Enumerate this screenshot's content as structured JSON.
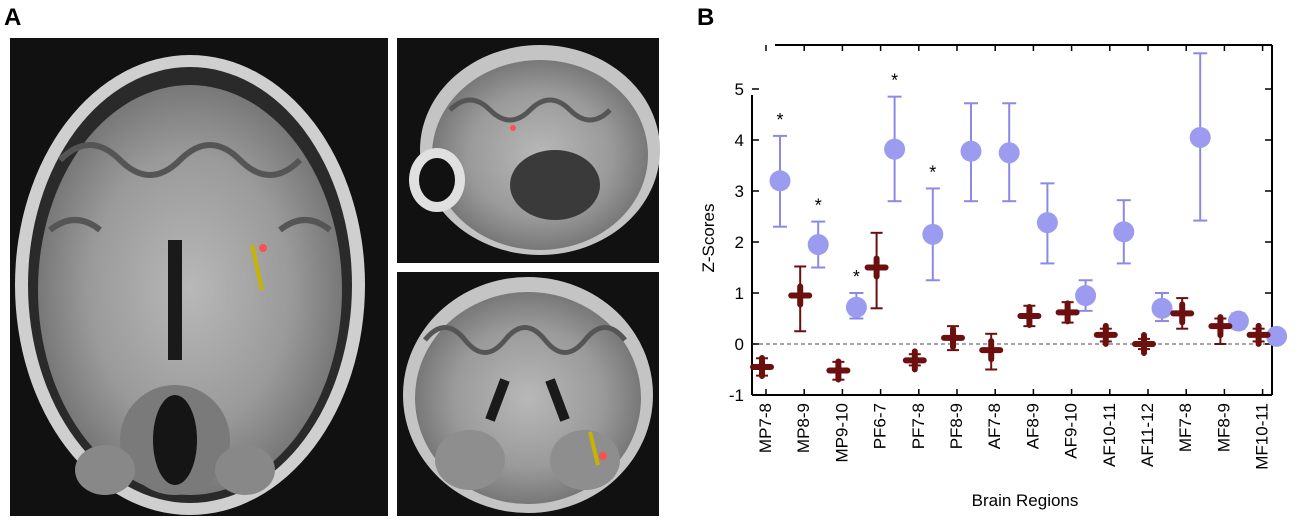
{
  "panels": {
    "a_label": "A",
    "b_label": "B"
  },
  "colors": {
    "series_a": "#9b9bf0",
    "series_a_err": "#8a8ae6",
    "series_b": "#6b0f0f"
  },
  "chart_data": {
    "type": "scatter",
    "xlabel": "Brain Regions",
    "ylabel": "Z-Scores",
    "ylim": [
      -1,
      5
    ],
    "yticks": [
      "-1",
      "0",
      "1",
      "2",
      "3",
      "4",
      "5"
    ],
    "grid": false,
    "reference_line": 0,
    "categories": [
      "MP7-8",
      "MP8-9",
      "MP9-10",
      "PF6-7",
      "PF7-8",
      "PF8-9",
      "AF7-8",
      "AF8-9",
      "AF9-10",
      "AF10-11",
      "AF11-12",
      "MF7-8",
      "MF8-9",
      "MF10-11"
    ],
    "series": [
      {
        "marker": "circle",
        "x_index": [
          0,
          1,
          2,
          3,
          4,
          5,
          6,
          7,
          8,
          9,
          10,
          11,
          12,
          13
        ],
        "values": [
          3.2,
          1.95,
          0.72,
          3.82,
          2.15,
          3.78,
          3.75,
          2.38,
          0.95,
          2.2,
          0.7,
          4.05,
          0.45,
          0.15
        ],
        "err_low": [
          2.3,
          1.5,
          0.5,
          2.8,
          1.25,
          2.8,
          2.8,
          1.58,
          0.65,
          1.58,
          0.45,
          2.42,
          0.3,
          0.05
        ],
        "err_high": [
          4.08,
          2.4,
          1.0,
          4.85,
          3.05,
          4.72,
          4.72,
          3.15,
          1.25,
          2.82,
          1.0,
          5.7,
          0.6,
          0.25
        ],
        "annotations": [
          "*",
          "*",
          "*",
          "*",
          "*",
          "",
          "",
          "",
          "",
          "",
          "",
          "",
          "",
          ""
        ]
      },
      {
        "marker": "cross",
        "x_index": [
          0,
          1,
          2,
          3,
          4,
          5,
          6,
          7,
          8,
          9,
          10,
          11,
          12,
          13
        ],
        "values": [
          -0.45,
          0.95,
          -0.52,
          1.5,
          -0.32,
          0.12,
          -0.12,
          0.55,
          0.62,
          0.18,
          0.0,
          0.6,
          0.35,
          0.18
        ],
        "err_low": [
          -0.62,
          0.25,
          -0.7,
          0.7,
          -0.42,
          -0.12,
          -0.5,
          0.35,
          0.42,
          0.05,
          -0.1,
          0.3,
          0.0,
          0.05
        ],
        "err_high": [
          -0.28,
          1.52,
          -0.35,
          2.18,
          -0.2,
          0.35,
          0.2,
          0.75,
          0.82,
          0.3,
          0.1,
          0.9,
          0.5,
          0.3
        ]
      }
    ]
  }
}
